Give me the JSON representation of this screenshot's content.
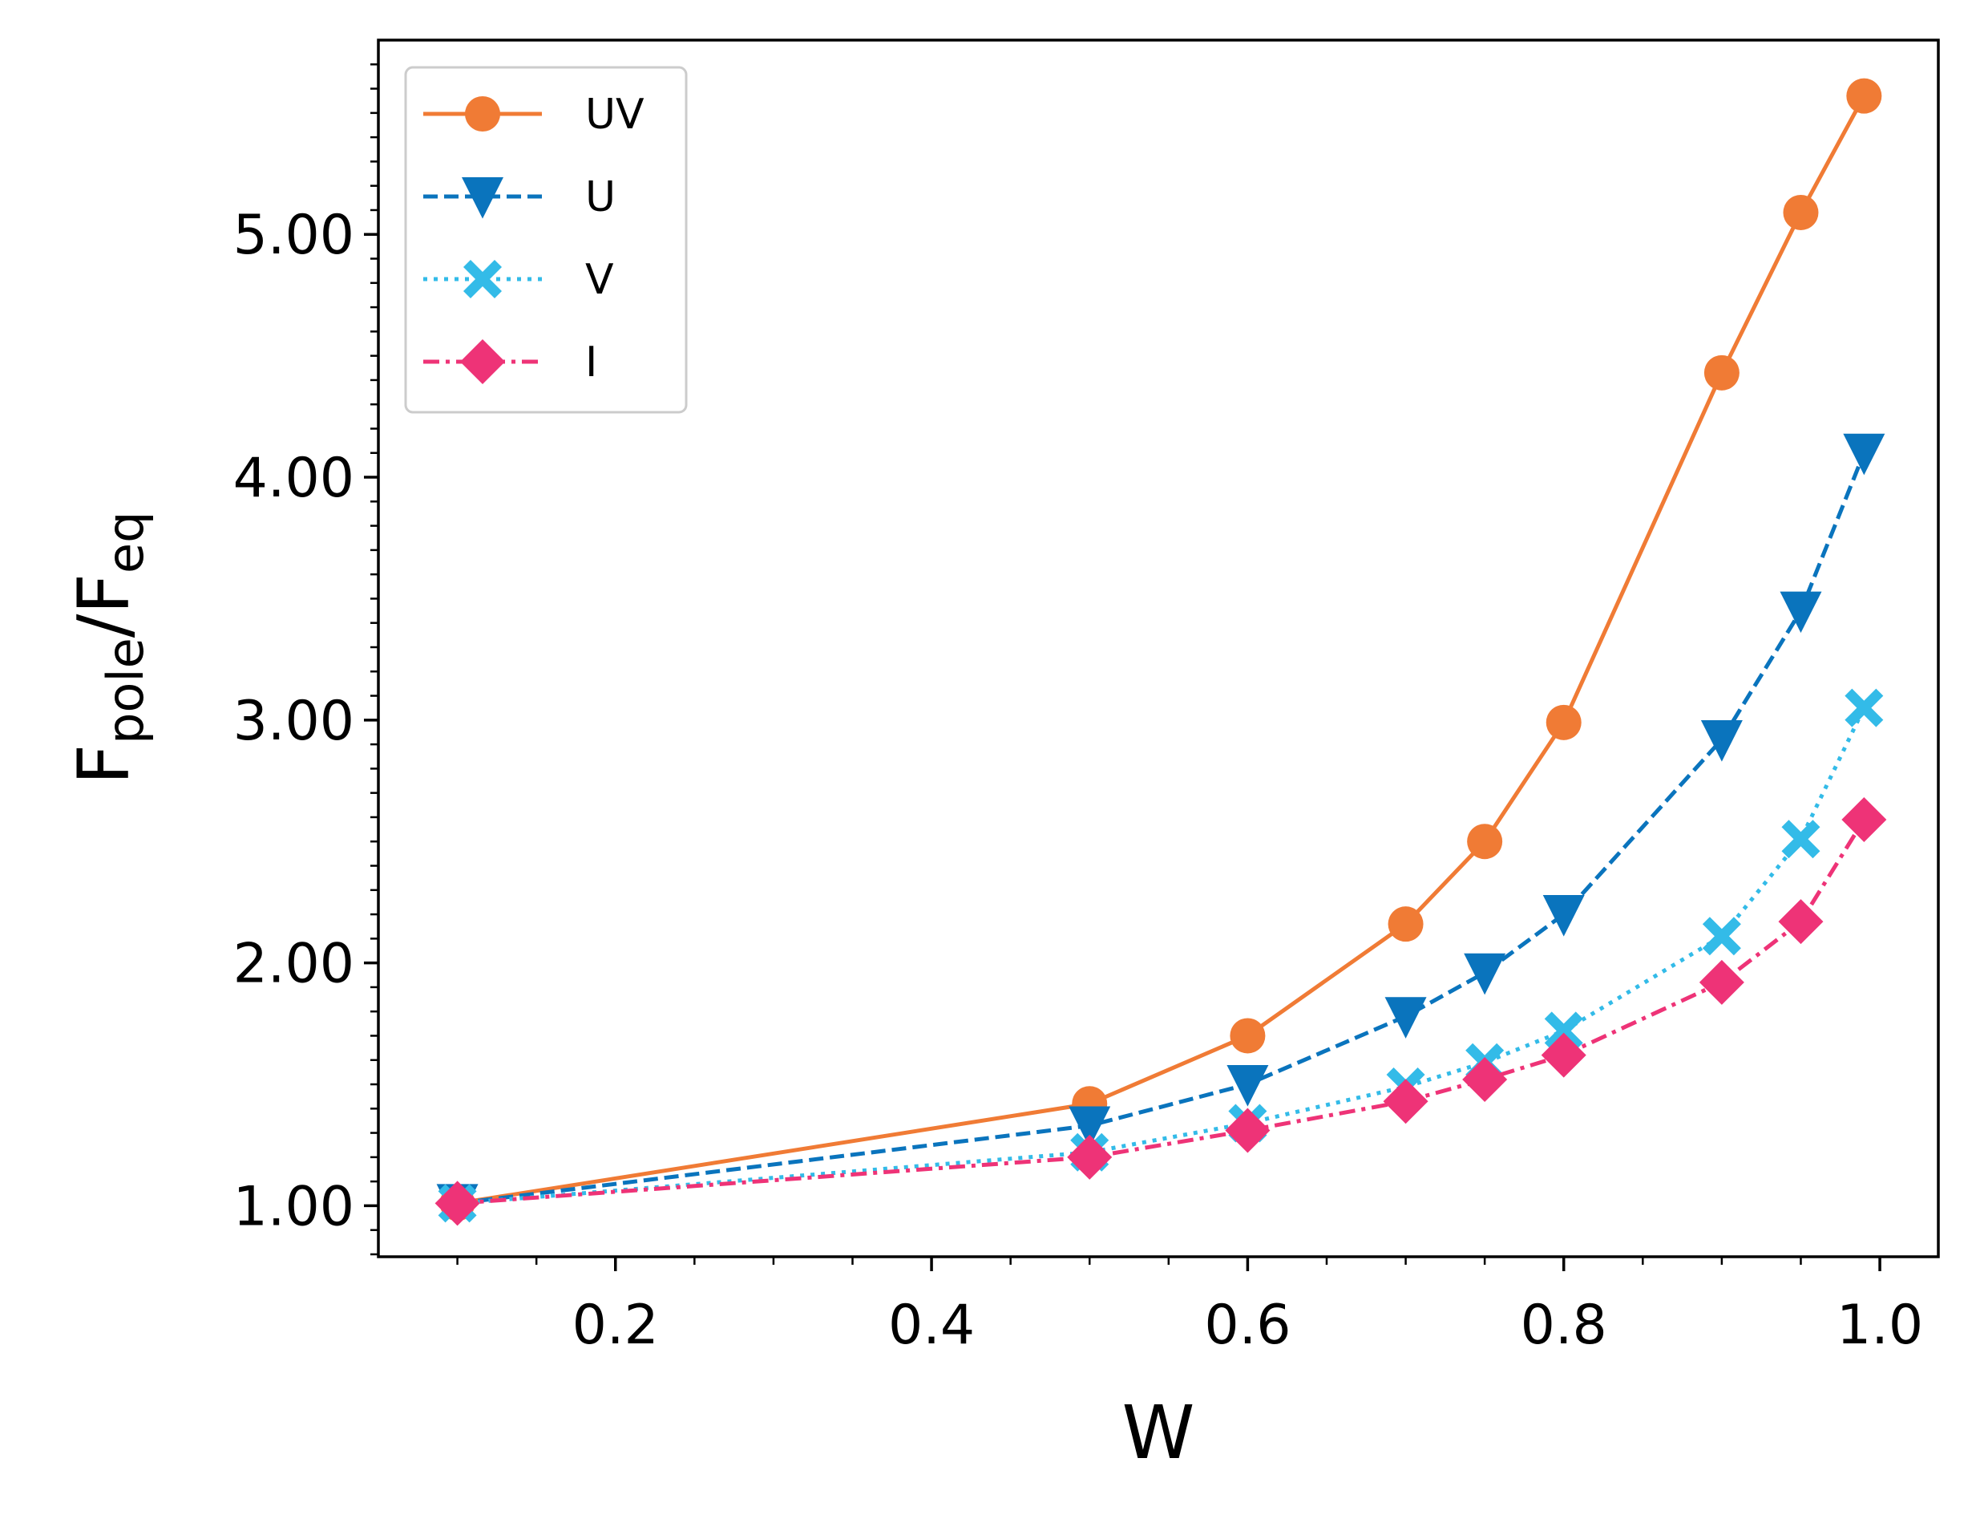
{
  "chart_data": {
    "type": "line",
    "title": "",
    "xlabel": "W",
    "ylabel": {
      "main": "F",
      "sub1": "pole",
      "slash": "/F",
      "sub2": "eq"
    },
    "xlim": [
      0.05,
      1.037
    ],
    "ylim": [
      0.79,
      5.8
    ],
    "xticks": [
      0.2,
      0.4,
      0.6,
      0.8,
      1.0
    ],
    "xtick_labels": [
      "0.2",
      "0.4",
      "0.6",
      "0.8",
      "1.0"
    ],
    "xminor": [
      0.1,
      0.15,
      0.25,
      0.3,
      0.35,
      0.45,
      0.5,
      0.55,
      0.65,
      0.7,
      0.75,
      0.85,
      0.9,
      0.95
    ],
    "yticks": [
      1.0,
      2.0,
      3.0,
      4.0,
      5.0
    ],
    "ytick_labels": [
      "1.00",
      "2.00",
      "3.00",
      "4.00",
      "5.00"
    ],
    "yminor": [
      0.8,
      0.9,
      1.1,
      1.2,
      1.3,
      1.4,
      1.5,
      1.6,
      1.7,
      1.8,
      1.9,
      2.1,
      2.2,
      2.3,
      2.4,
      2.5,
      2.6,
      2.7,
      2.8,
      2.9,
      3.1,
      3.2,
      3.3,
      3.4,
      3.5,
      3.6,
      3.7,
      3.8,
      3.9,
      4.1,
      4.2,
      4.3,
      4.4,
      4.5,
      4.6,
      4.7,
      4.8,
      4.9,
      5.1,
      5.2,
      5.3,
      5.4,
      5.5,
      5.6,
      5.7
    ],
    "legend_position": "top-left",
    "grid": false,
    "x": [
      0.1,
      0.5,
      0.6,
      0.7,
      0.75,
      0.8,
      0.9,
      0.95,
      0.99
    ],
    "series": [
      {
        "name": "UV",
        "color": "#f07b35",
        "linestyle": "solid",
        "marker": "circle",
        "values": [
          1.01,
          1.42,
          1.7,
          2.16,
          2.5,
          2.99,
          4.43,
          5.09,
          5.57
        ]
      },
      {
        "name": "U",
        "color": "#0a74bd",
        "linestyle": "dashed",
        "marker": "triangle-down",
        "values": [
          1.01,
          1.33,
          1.5,
          1.78,
          1.96,
          2.2,
          2.92,
          3.45,
          4.1
        ]
      },
      {
        "name": "V",
        "color": "#33bbe8",
        "linestyle": "dotted",
        "marker": "x-filled",
        "values": [
          1.01,
          1.22,
          1.34,
          1.49,
          1.59,
          1.72,
          2.11,
          2.51,
          3.05
        ]
      },
      {
        "name": "I",
        "color": "#ee3377",
        "linestyle": "dashdot",
        "marker": "diamond",
        "values": [
          1.01,
          1.2,
          1.31,
          1.43,
          1.52,
          1.62,
          1.92,
          2.17,
          2.59
        ]
      }
    ]
  }
}
